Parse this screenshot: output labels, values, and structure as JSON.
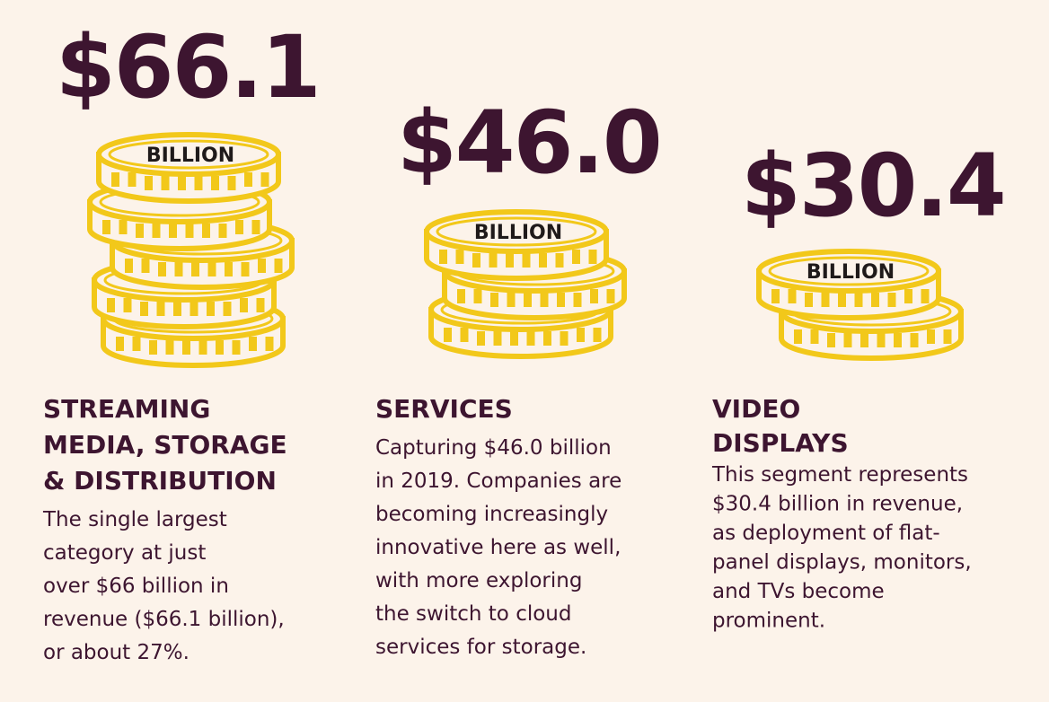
{
  "columns": [
    {
      "amount": "$66.1",
      "unit": "BILLION",
      "heading": [
        "STREAMING",
        "MEDIA, STORAGE",
        "& DISTRIBUTION"
      ],
      "body": [
        "The single largest",
        "category at just",
        "over $66 billion in",
        "revenue ($66.1 billion),",
        "or about 27%."
      ]
    },
    {
      "amount": "$46.0",
      "unit": "BILLION",
      "heading": [
        "SERVICES"
      ],
      "body": [
        "Capturing $46.0 billion",
        "in 2019. Companies are",
        "becoming increasingly",
        "innovative here as well,",
        "with more exploring",
        "the switch to cloud",
        "services for storage."
      ]
    },
    {
      "amount": "$30.4",
      "unit": "BILLION",
      "heading": [
        "VIDEO",
        "DISPLAYS"
      ],
      "body": [
        "This segment represents",
        "$30.4 billion in revenue,",
        "as deployment of flat-",
        "panel displays, monitors,",
        "and TVs become",
        "prominent."
      ]
    }
  ]
}
